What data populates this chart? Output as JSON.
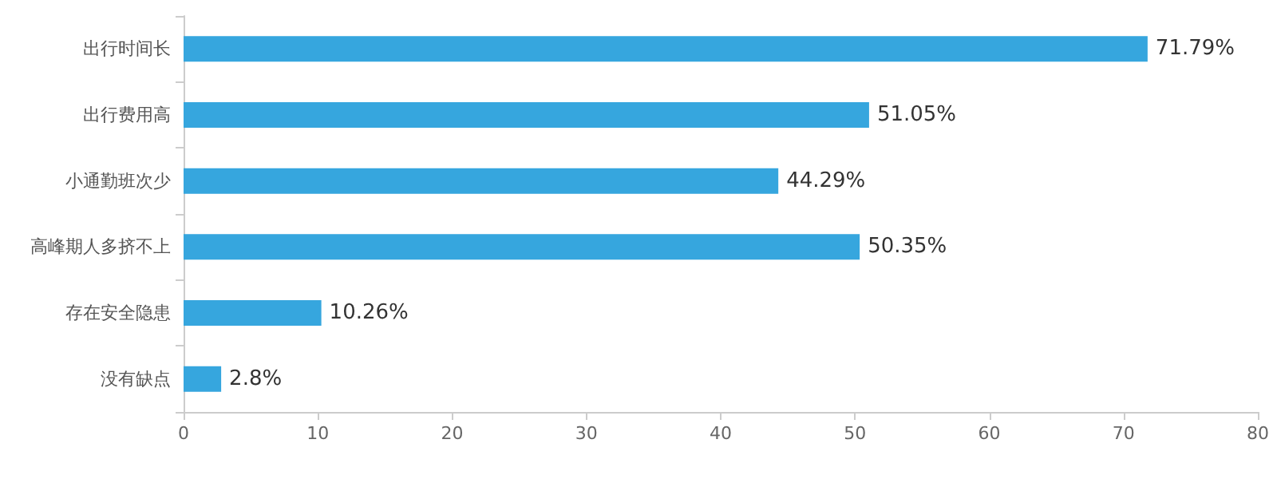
{
  "chart_data": {
    "type": "bar",
    "orientation": "horizontal",
    "categories": [
      "出行时间长",
      "出行费用高",
      "小通勤班次少",
      "高峰期人多挤不上",
      "存在安全隐患",
      "没有缺点"
    ],
    "values": [
      71.79,
      51.05,
      44.29,
      50.35,
      10.26,
      2.8
    ],
    "value_labels": [
      "71.79%",
      "51.05%",
      "44.29%",
      "50.35%",
      "10.26%",
      "2.8%"
    ],
    "color": "#36a6de",
    "xlim": [
      0,
      80
    ],
    "xticks": [
      0,
      10,
      20,
      30,
      40,
      50,
      60,
      70,
      80
    ],
    "grid": false
  }
}
